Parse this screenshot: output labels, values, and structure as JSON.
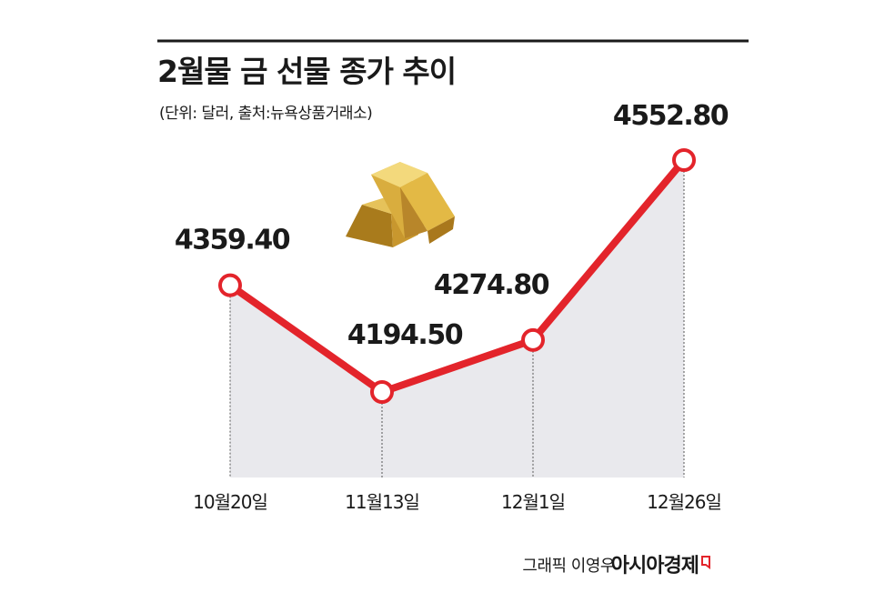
{
  "chart_data": {
    "type": "line",
    "title": "2월물 금 선물 종가 추이",
    "subtitle": "(단위: 달러, 출처:뉴욕상품거래소)",
    "categories": [
      "10월20일",
      "11월13일",
      "12월1일",
      "12월26일"
    ],
    "values": [
      4359.4,
      4194.5,
      4274.8,
      4552.8
    ],
    "value_labels": [
      "4359.40",
      "4194.50",
      "4274.80",
      "4552.80"
    ],
    "color": "#e3242b",
    "area_color": "#e9e9ed",
    "credit": "그래픽 이영우",
    "source": "아시아경제"
  }
}
